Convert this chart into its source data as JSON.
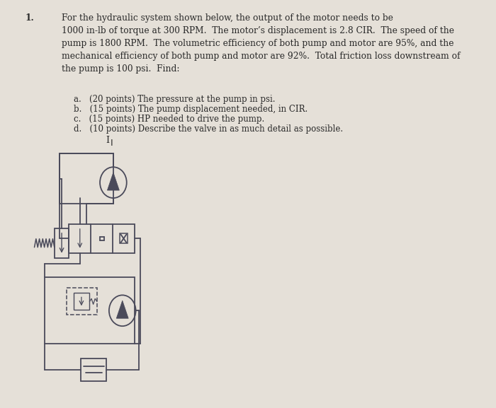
{
  "background_color": "#e5e0d8",
  "title_number": "1.",
  "problem_text": "For the hydraulic system shown below, the output of the motor needs to be\n1000 in-lb of torque at 300 RPM.  The motor’s displacement is 2.8 CIR.  The speed of the\npump is 1800 RPM.  The volumetric efficiency of both pump and motor are 95%, and the\nmechanical efficiency of both pump and motor are 92%.  Total friction loss downstream of\nthe pump is 100 psi.  Find:",
  "sub_items": [
    "a.   (20 points) The pressure at the pump in psi.",
    "b.   (15 points) The pump displacement needed, in CIR.",
    "c.   (15 points) HP needed to drive the pump.",
    "d.   (10 points) Describe the valve in as much detail as possible."
  ],
  "line_color": "#4a4a5a",
  "line_width": 1.3,
  "text_color": "#2a2a2a",
  "font_size_main": 8.8,
  "font_size_sub": 8.5
}
